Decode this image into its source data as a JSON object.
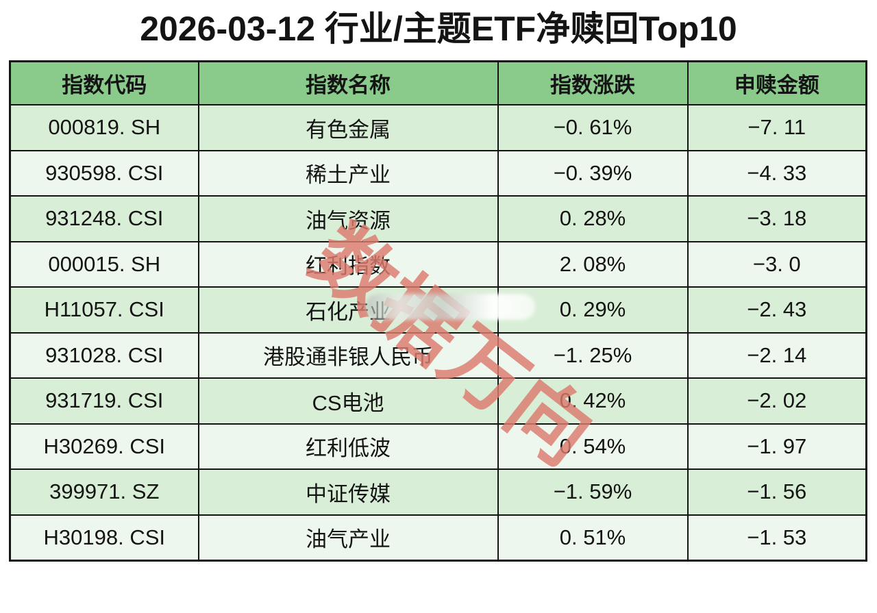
{
  "title": "2026-03-12 行业/主题ETF净赎回Top10",
  "watermark": {
    "text": "数据万向",
    "color": "#dc7b6e"
  },
  "colors": {
    "header_green": "#8acb8b",
    "row_dark": "#d9eed7",
    "row_light": "#eef7ee",
    "border": "#141414",
    "background": "#ffffff"
  },
  "table": {
    "headers": [
      "指数代码",
      "指数名称",
      "指数涨跌",
      "申赎金额"
    ],
    "rows": [
      {
        "code": "000819. SH",
        "name": "有色金属",
        "change": "−0. 61%",
        "amount": "−7. 11"
      },
      {
        "code": "930598. CSI",
        "name": "稀土产业",
        "change": "−0. 39%",
        "amount": "−4. 33"
      },
      {
        "code": "931248. CSI",
        "name": "油气资源",
        "change": "0. 28%",
        "amount": "−3. 18"
      },
      {
        "code": "000015. SH",
        "name": "红利指数",
        "change": "2. 08%",
        "amount": "−3. 0"
      },
      {
        "code": "H11057. CSI",
        "name": "石化产业",
        "change": "0. 29%",
        "amount": "−2. 43"
      },
      {
        "code": "931028. CSI",
        "name": "港股通非银人民币",
        "change": "−1. 25%",
        "amount": "−2. 14"
      },
      {
        "code": "931719. CSI",
        "name": "CS电池",
        "change": "0. 42%",
        "amount": "−2. 02"
      },
      {
        "code": "H30269. CSI",
        "name": "红利低波",
        "change": "0. 54%",
        "amount": "−1. 97"
      },
      {
        "code": "399971. SZ",
        "name": "中证传媒",
        "change": "−1. 59%",
        "amount": "−1. 56"
      },
      {
        "code": "H30198. CSI",
        "name": "油气产业",
        "change": "0. 51%",
        "amount": "−1. 53"
      }
    ]
  },
  "chart_data": {
    "type": "table",
    "title": "2026-03-12 行业/主题ETF净赎回Top10",
    "columns": [
      "指数代码",
      "指数名称",
      "指数涨跌(%)",
      "申赎金额"
    ],
    "rows": [
      [
        "000819.SH",
        "有色金属",
        -0.61,
        -7.11
      ],
      [
        "930598.CSI",
        "稀土产业",
        -0.39,
        -4.33
      ],
      [
        "931248.CSI",
        "油气资源",
        0.28,
        -3.18
      ],
      [
        "000015.SH",
        "红利指数",
        2.08,
        -3.0
      ],
      [
        "H11057.CSI",
        "石化产业",
        0.29,
        -2.43
      ],
      [
        "931028.CSI",
        "港股通非银人民币",
        -1.25,
        -2.14
      ],
      [
        "931719.CSI",
        "CS电池",
        0.42,
        -2.02
      ],
      [
        "H30269.CSI",
        "红利低波",
        0.54,
        -1.97
      ],
      [
        "399971.SZ",
        "中证传媒",
        -1.59,
        -1.56
      ],
      [
        "H30198.CSI",
        "油气产业",
        0.51,
        -1.53
      ]
    ]
  }
}
